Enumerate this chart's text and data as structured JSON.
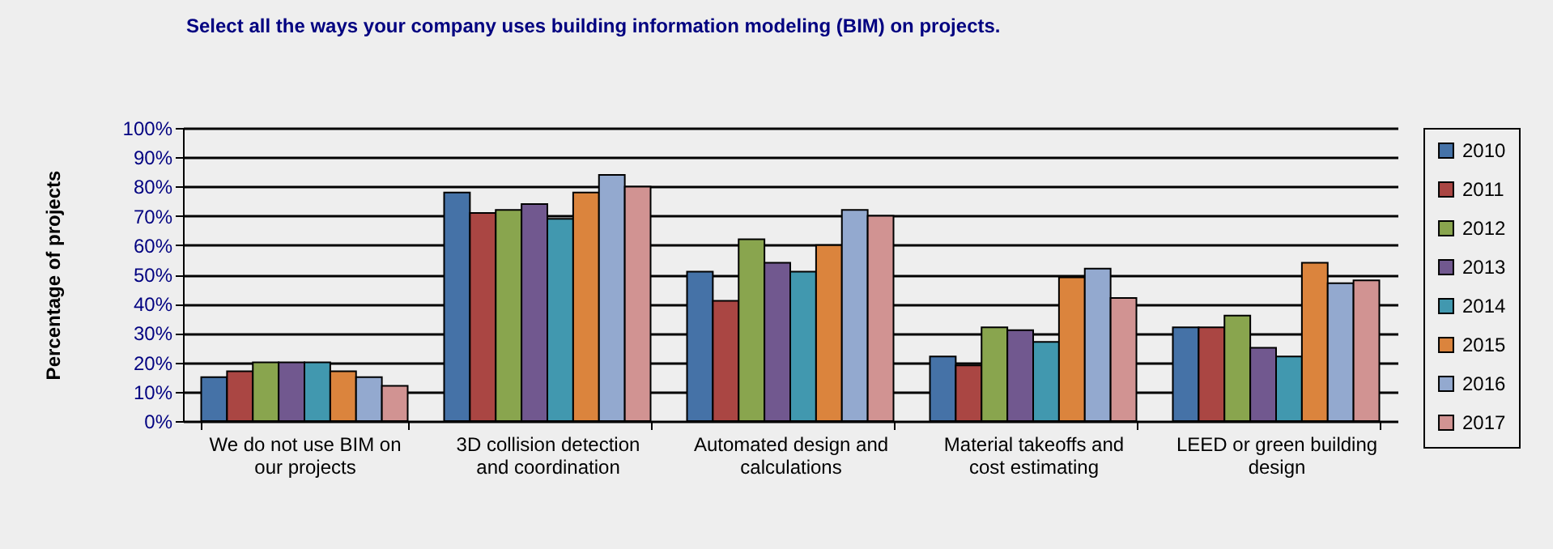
{
  "chart_data": {
    "type": "bar",
    "title": "Select all the ways your company uses building information modeling (BIM) on projects.",
    "ylabel": "Percentage of projects",
    "categories": [
      "We do not use BIM on our projects",
      "3D collision detection and coordination",
      "Automated design and calculations",
      "Material takeoffs and cost estimating",
      "LEED or green building design"
    ],
    "series": [
      {
        "name": "2010",
        "color": "#4572a7",
        "values": [
          15,
          78,
          51,
          22,
          32
        ]
      },
      {
        "name": "2011",
        "color": "#aa4643",
        "values": [
          17,
          71,
          41,
          19,
          32
        ]
      },
      {
        "name": "2012",
        "color": "#89a54e",
        "values": [
          20,
          72,
          62,
          32,
          36
        ]
      },
      {
        "name": "2013",
        "color": "#71588f",
        "values": [
          20,
          74,
          54,
          31,
          25
        ]
      },
      {
        "name": "2014",
        "color": "#4198af",
        "values": [
          20,
          69,
          51,
          27,
          22
        ]
      },
      {
        "name": "2015",
        "color": "#db843d",
        "values": [
          17,
          78,
          60,
          49,
          54
        ]
      },
      {
        "name": "2016",
        "color": "#93a9cf",
        "values": [
          15,
          84,
          72,
          52,
          47
        ]
      },
      {
        "name": "2017",
        "color": "#d19392",
        "values": [
          12,
          80,
          70,
          42,
          48
        ]
      }
    ],
    "ylim": [
      0,
      100
    ],
    "yticks": [
      {
        "value": 0,
        "label": "0%"
      },
      {
        "value": 10,
        "label": "10%"
      },
      {
        "value": 20,
        "label": "20%"
      },
      {
        "value": 30,
        "label": "30%"
      },
      {
        "value": 40,
        "label": "40%"
      },
      {
        "value": 50,
        "label": "50%"
      },
      {
        "value": 60,
        "label": "60%"
      },
      {
        "value": 70,
        "label": "70%"
      },
      {
        "value": 80,
        "label": "80%"
      },
      {
        "value": 90,
        "label": "90%"
      },
      {
        "value": 100,
        "label": "100%"
      }
    ],
    "grid": "y",
    "legend": "right"
  }
}
